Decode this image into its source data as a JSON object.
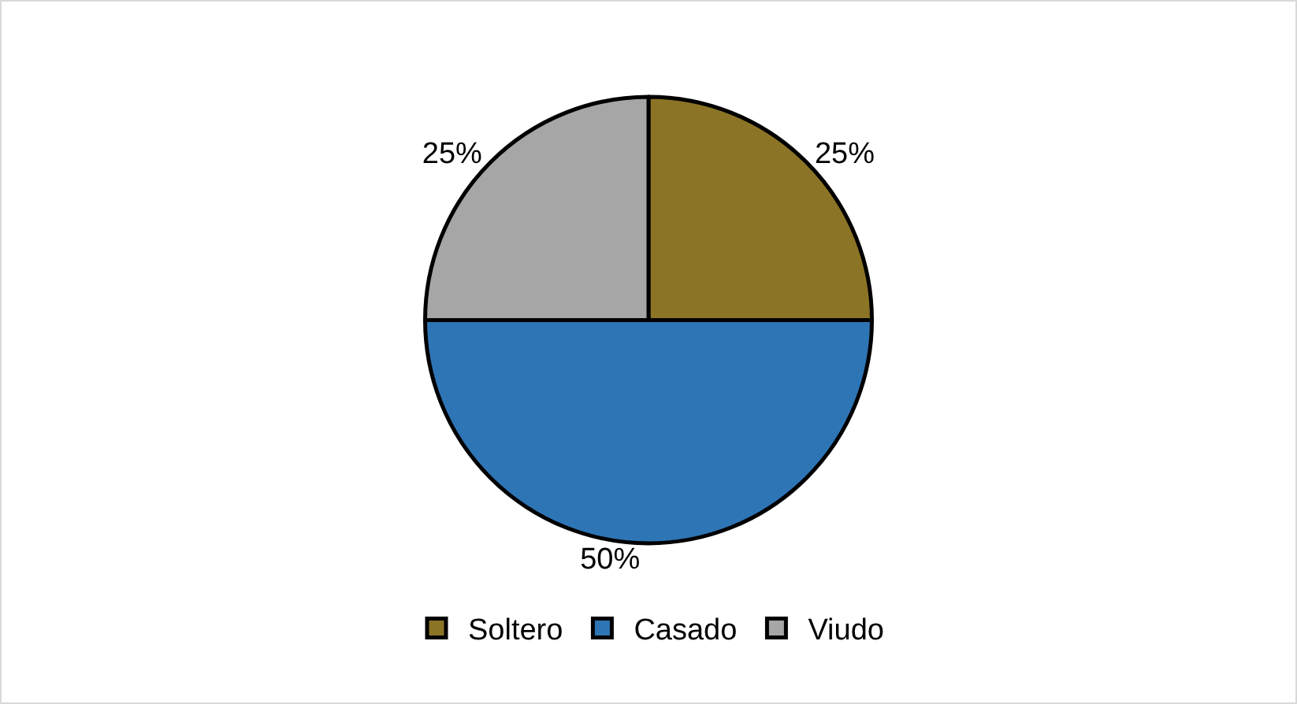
{
  "chart_data": {
    "type": "pie",
    "categories": [
      "Soltero",
      "Casado",
      "Viudo"
    ],
    "values": [
      25,
      50,
      25
    ],
    "colors": [
      "#8c7426",
      "#2e75b6",
      "#a6a6a6"
    ],
    "value_labels": [
      "25%",
      "50%",
      "25%"
    ],
    "legend": "bottom"
  }
}
